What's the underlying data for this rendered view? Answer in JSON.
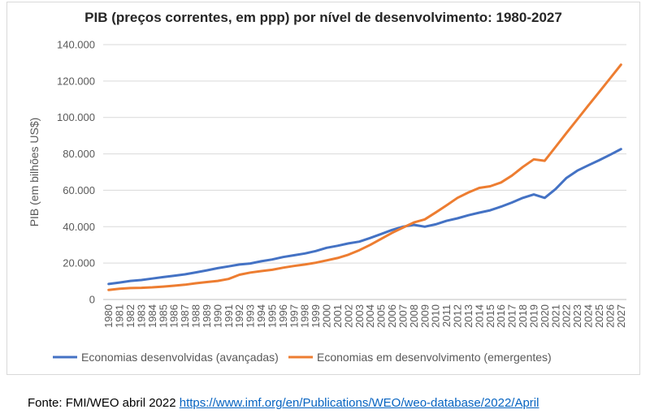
{
  "source": {
    "prefix": "Fonte: FMI/WEO abril 2022",
    "link": "https://www.imf.org/en/Publications/WEO/weo-database/2022/April"
  },
  "chart_data": {
    "type": "line",
    "title": "PIB (preços correntes, em ppp) por nível de desenvolvimento: 1980-2027",
    "xlabel": "",
    "ylabel": "PIB (em bilhões US$)",
    "ylim": [
      0,
      140000
    ],
    "yticks": [
      0,
      20000,
      40000,
      60000,
      80000,
      100000,
      120000,
      140000
    ],
    "ytick_labels": [
      "0",
      "20.000",
      "40.000",
      "60.000",
      "80.000",
      "100.000",
      "120.000",
      "140.000"
    ],
    "grid": true,
    "legend_position": "bottom",
    "x": [
      "1980",
      "1981",
      "1982",
      "1983",
      "1984",
      "1985",
      "1986",
      "1987",
      "1988",
      "1989",
      "1990",
      "1991",
      "1992",
      "1993",
      "1994",
      "1995",
      "1996",
      "1997",
      "1998",
      "1999",
      "2000",
      "2001",
      "2002",
      "2003",
      "2004",
      "2005",
      "2006",
      "2007",
      "2008",
      "2009",
      "2010",
      "2011",
      "2012",
      "2013",
      "2014",
      "2015",
      "2016",
      "2017",
      "2018",
      "2019",
      "2020",
      "2021",
      "2022",
      "2023",
      "2024",
      "2025",
      "2026",
      "2027"
    ],
    "series": [
      {
        "name": "Economias desenvolvidas (avançadas)",
        "color": "#4472c4",
        "values": [
          8500,
          9300,
          10200,
          10700,
          11500,
          12300,
          13000,
          13800,
          14900,
          16000,
          17200,
          18200,
          19200,
          19800,
          21000,
          22000,
          23300,
          24300,
          25300,
          26600,
          28400,
          29500,
          30800,
          31800,
          33800,
          36000,
          38200,
          40000,
          41000,
          40000,
          41300,
          43200,
          44600,
          46300,
          47700,
          49000,
          51000,
          53300,
          55800,
          57700,
          55800,
          60700,
          66800,
          70800,
          73700,
          76500,
          79500,
          82600
        ]
      },
      {
        "name": "Economias em desenvolvimento (emergentes)",
        "color": "#ed7d31",
        "values": [
          5200,
          5900,
          6300,
          6400,
          6700,
          7100,
          7600,
          8100,
          8900,
          9600,
          10200,
          11300,
          13600,
          14800,
          15600,
          16300,
          17500,
          18400,
          19200,
          20200,
          21500,
          22800,
          24600,
          27100,
          30000,
          33300,
          36600,
          39500,
          42300,
          44000,
          47800,
          51700,
          55800,
          58800,
          61300,
          62200,
          64300,
          68100,
          72800,
          77000,
          76200,
          83800,
          91500,
          99000,
          106500,
          114000,
          121500,
          129000
        ]
      }
    ]
  }
}
